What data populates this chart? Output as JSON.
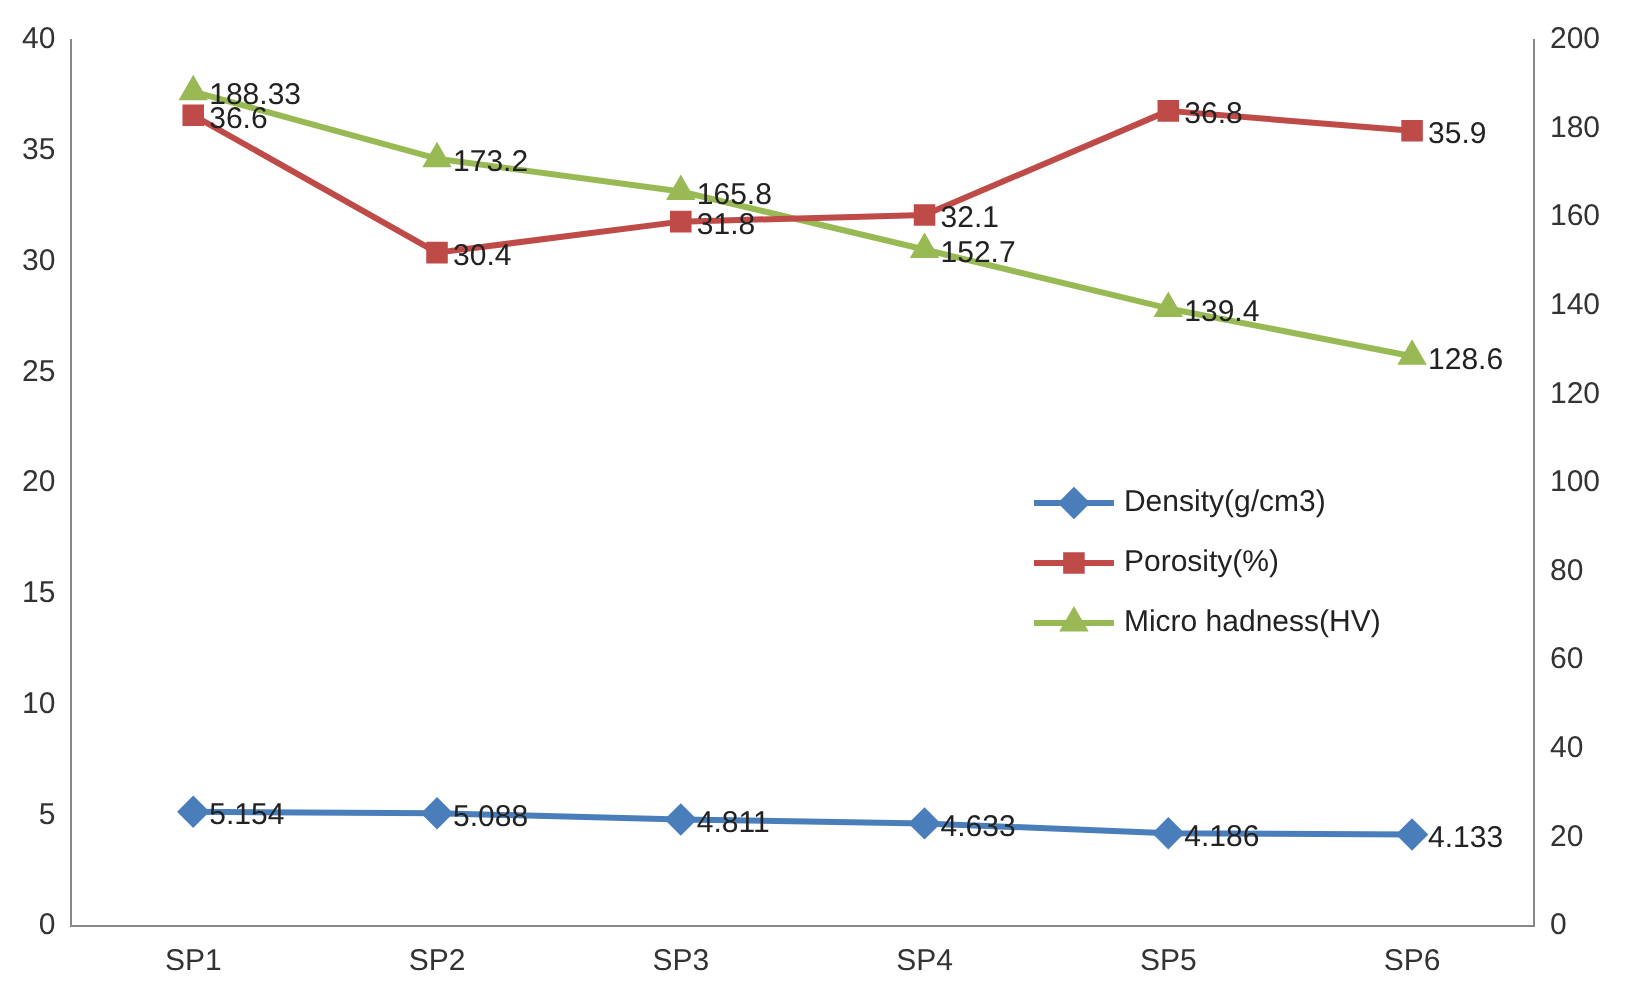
{
  "chart_data": {
    "type": "line",
    "categories": [
      "SP1",
      "SP2",
      "SP3",
      "SP4",
      "SP5",
      "SP6"
    ],
    "series": [
      {
        "name": "Density(g/cm3)",
        "color": "#4a7ebb",
        "marker": "diamond",
        "values": [
          5.154,
          5.088,
          4.811,
          4.633,
          4.186,
          4.133
        ]
      },
      {
        "name": "Porosity(%)",
        "color": "#be4b48",
        "marker": "square",
        "values": [
          36.6,
          30.4,
          31.8,
          32.1,
          36.8,
          35.9
        ]
      },
      {
        "name": "Micro hadness(HV)",
        "color": "#98b954",
        "marker": "triangle",
        "axis": "y2",
        "values": [
          188.33,
          173.2,
          165.8,
          152.7,
          139.4,
          128.6
        ]
      }
    ],
    "ylim": [
      0,
      40
    ],
    "yticks": [
      0,
      5,
      10,
      15,
      20,
      25,
      30,
      35,
      40
    ],
    "y2lim": [
      0,
      200
    ],
    "y2ticks": [
      0,
      20,
      40,
      60,
      80,
      100,
      120,
      140,
      160,
      180,
      200
    ],
    "grid": false,
    "legend": "right",
    "line_style": "solid",
    "data_labels": true
  }
}
